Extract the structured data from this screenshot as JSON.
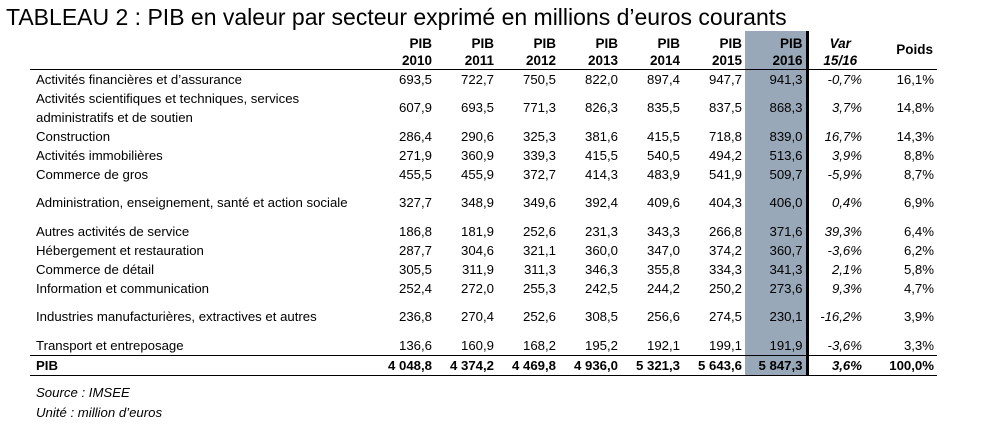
{
  "title": "TABLEAU 2 : PIB en valeur par secteur exprimé en millions d’euros courants",
  "headers": [
    {
      "line1": "PIB",
      "line2": "2010"
    },
    {
      "line1": "PIB",
      "line2": "2011"
    },
    {
      "line1": "PIB",
      "line2": "2012"
    },
    {
      "line1": "PIB",
      "line2": "2013"
    },
    {
      "line1": "PIB",
      "line2": "2014"
    },
    {
      "line1": "PIB",
      "line2": "2015"
    },
    {
      "line1": "PIB",
      "line2": "2016"
    },
    {
      "line1": "Var",
      "line2": "15/16"
    },
    {
      "line1": "Poids",
      "line2": ""
    }
  ],
  "rows": [
    {
      "label": "Activités financières et d’assurance",
      "values": [
        "693,5",
        "722,7",
        "750,5",
        "822,0",
        "897,4",
        "947,7",
        "941,3"
      ],
      "var": "-0,7%",
      "poids": "16,1%"
    },
    {
      "label": "Activités scientifiques et techniques, services administratifs et de soutien",
      "values": [
        "607,9",
        "693,5",
        "771,3",
        "826,3",
        "835,5",
        "837,5",
        "868,3"
      ],
      "var": "3,7%",
      "poids": "14,8%"
    },
    {
      "label": "Construction",
      "values": [
        "286,4",
        "290,6",
        "325,3",
        "381,6",
        "415,5",
        "718,8",
        "839,0"
      ],
      "var": "16,7%",
      "poids": "14,3%"
    },
    {
      "label": "Activités immobilières",
      "values": [
        "271,9",
        "360,9",
        "339,3",
        "415,5",
        "540,5",
        "494,2",
        "513,6"
      ],
      "var": "3,9%",
      "poids": "8,8%"
    },
    {
      "label": "Commerce de gros",
      "values": [
        "455,5",
        "455,9",
        "372,7",
        "414,3",
        "483,9",
        "541,9",
        "509,7"
      ],
      "var": "-5,9%",
      "poids": "8,7%"
    },
    {
      "label": "Administration, enseignement, santé et action sociale",
      "values": [
        "327,7",
        "348,9",
        "349,6",
        "392,4",
        "409,6",
        "404,3",
        "406,0"
      ],
      "var": "0,4%",
      "poids": "6,9%"
    },
    {
      "label": "Autres activités de service",
      "values": [
        "186,8",
        "181,9",
        "252,6",
        "231,3",
        "343,3",
        "266,8",
        "371,6"
      ],
      "var": "39,3%",
      "poids": "6,4%"
    },
    {
      "label": "Hébergement et restauration",
      "values": [
        "287,7",
        "304,6",
        "321,1",
        "360,0",
        "347,0",
        "374,2",
        "360,7"
      ],
      "var": "-3,6%",
      "poids": "6,2%"
    },
    {
      "label": "Commerce de détail",
      "values": [
        "305,5",
        "311,9",
        "311,3",
        "346,3",
        "355,8",
        "334,3",
        "341,3"
      ],
      "var": "2,1%",
      "poids": "5,8%"
    },
    {
      "label": "Information et communication",
      "values": [
        "252,4",
        "272,0",
        "255,3",
        "242,5",
        "244,2",
        "250,2",
        "273,6"
      ],
      "var": "9,3%",
      "poids": "4,7%"
    },
    {
      "label": "Industries manufacturières, extractives et autres",
      "values": [
        "236,8",
        "270,4",
        "252,6",
        "308,5",
        "256,6",
        "274,5",
        "230,1"
      ],
      "var": "-16,2%",
      "poids": "3,9%"
    },
    {
      "label": "Transport et entreposage",
      "values": [
        "136,6",
        "160,9",
        "168,2",
        "195,2",
        "192,1",
        "199,1",
        "191,9"
      ],
      "var": "-3,6%",
      "poids": "3,3%"
    }
  ],
  "total": {
    "label": "PIB",
    "values": [
      "4 048,8",
      "4 374,2",
      "4 469,8",
      "4 936,0",
      "5 321,3",
      "5 643,6",
      "5 847,3"
    ],
    "var": "3,6%",
    "poids": "100,0%"
  },
  "notes": {
    "source": "Source : IMSEE",
    "unit": "Unité : million d’euros"
  }
}
